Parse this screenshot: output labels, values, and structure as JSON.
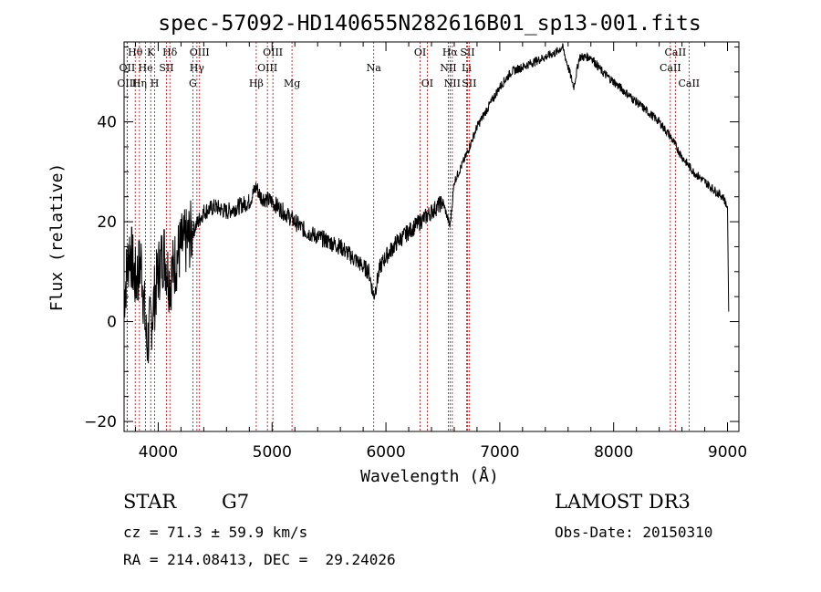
{
  "chart_data": {
    "type": "line",
    "title": "spec-57092-HD140655N282616B01_sp13-001.fits",
    "xlabel": "Wavelength (Å)",
    "ylabel": "Flux (relative)",
    "xlim": [
      3700,
      9100
    ],
    "ylim": [
      -22,
      56
    ],
    "xticks": [
      4000,
      5000,
      6000,
      7000,
      8000,
      9000
    ],
    "yticks": [
      -20,
      0,
      20,
      40
    ],
    "grid": false,
    "series": [
      {
        "name": "spectrum",
        "x": [
          3700,
          3750,
          3800,
          3850,
          3900,
          3950,
          4000,
          4050,
          4100,
          4150,
          4200,
          4250,
          4300,
          4400,
          4500,
          4600,
          4700,
          4800,
          4861,
          4900,
          5000,
          5100,
          5200,
          5300,
          5400,
          5500,
          5600,
          5700,
          5800,
          5850,
          5893,
          5950,
          6000,
          6100,
          6200,
          6300,
          6400,
          6500,
          6563,
          6600,
          6700,
          6800,
          6900,
          7000,
          7100,
          7200,
          7300,
          7400,
          7500,
          7550,
          7600,
          7650,
          7700,
          7800,
          7900,
          8000,
          8100,
          8200,
          8300,
          8400,
          8500,
          8600,
          8700,
          8800,
          8900,
          8960,
          9000,
          9010
        ],
        "y": [
          5,
          15,
          8,
          12,
          -5,
          2,
          10,
          14,
          8,
          12,
          15,
          16,
          18,
          22,
          23,
          22,
          23,
          24,
          27,
          25,
          24,
          22,
          20,
          18,
          17,
          16,
          15,
          13,
          11,
          10,
          5,
          11,
          13,
          16,
          18,
          20,
          22,
          24,
          19,
          28,
          33,
          39,
          43,
          47,
          50,
          51,
          52,
          53,
          54,
          55,
          51,
          47,
          53,
          53,
          50,
          48,
          46,
          44,
          42,
          40,
          37,
          33,
          30,
          28,
          26,
          25,
          23,
          2
        ]
      }
    ],
    "lines": [
      {
        "label": "Hθ",
        "x": 3798,
        "row": 1
      },
      {
        "label": "OII",
        "x": 3727,
        "row": 2
      },
      {
        "label": "OIII",
        "x": 3727,
        "row": 3
      },
      {
        "label": "He",
        "x": 3889,
        "row": 2
      },
      {
        "label": "Hη",
        "x": 3835,
        "row": 3
      },
      {
        "label": "K",
        "x": 3934,
        "row": 1
      },
      {
        "label": "SII",
        "x": 4072,
        "row": 2
      },
      {
        "label": "H",
        "x": 3969,
        "row": 3
      },
      {
        "label": "Hδ",
        "x": 4102,
        "row": 1
      },
      {
        "label": "OIII",
        "x": 4363,
        "row": 1
      },
      {
        "label": "Hγ",
        "x": 4340,
        "row": 2
      },
      {
        "label": "G",
        "x": 4304,
        "row": 3
      },
      {
        "label": "Hβ",
        "x": 4861,
        "row": 3
      },
      {
        "label": "OIII",
        "x": 5007,
        "row": 1
      },
      {
        "label": "OIII",
        "x": 4959,
        "row": 2
      },
      {
        "label": "Mg",
        "x": 5175,
        "row": 3
      },
      {
        "label": "Na",
        "x": 5893,
        "row": 2
      },
      {
        "label": "OI",
        "x": 6300,
        "row": 1
      },
      {
        "label": "OI",
        "x": 6363,
        "row": 3
      },
      {
        "label": "Hα",
        "x": 6563,
        "row": 1
      },
      {
        "label": "NII",
        "x": 6548,
        "row": 2
      },
      {
        "label": "NII",
        "x": 6583,
        "row": 3
      },
      {
        "label": "SII",
        "x": 6716,
        "row": 1
      },
      {
        "label": "Li",
        "x": 6708,
        "row": 2
      },
      {
        "label": "SII",
        "x": 6731,
        "row": 3
      },
      {
        "label": "CaII",
        "x": 8542,
        "row": 1
      },
      {
        "label": "CaII",
        "x": 8498,
        "row": 2
      },
      {
        "label": "CaII",
        "x": 8662,
        "row": 3
      }
    ]
  },
  "info": {
    "object_class": "STAR",
    "subclass": "G7",
    "survey": "LAMOST DR3",
    "cz": "cz = 71.3 ± 59.9 km/s",
    "obs_date": "Obs-Date: 20150310",
    "coords": "RA = 214.08413, DEC =  29.24026"
  }
}
